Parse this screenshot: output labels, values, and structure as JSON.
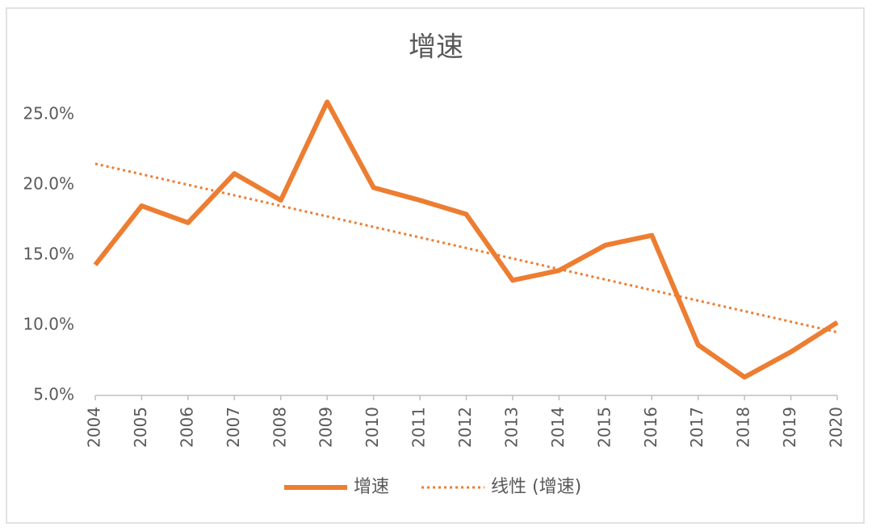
{
  "chart_data": {
    "type": "line",
    "title": "增速",
    "categories": [
      "2004",
      "2005",
      "2006",
      "2007",
      "2008",
      "2009",
      "2010",
      "2011",
      "2012",
      "2013",
      "2014",
      "2015",
      "2016",
      "2017",
      "2018",
      "2019",
      "2020"
    ],
    "series": [
      {
        "name": "增速",
        "color": "#ed7d31",
        "values": [
          14.3,
          18.5,
          17.3,
          20.8,
          18.9,
          25.9,
          19.8,
          18.9,
          17.9,
          13.2,
          13.9,
          15.7,
          16.4,
          8.6,
          6.3,
          8.1,
          10.2
        ]
      }
    ],
    "trendline": {
      "name": "线性 (增速)",
      "color": "#ed7d31",
      "start": 21.5,
      "end": 9.5
    },
    "ylim": [
      5,
      25
    ],
    "yticks": [
      {
        "value": 5,
        "label": "5.0%"
      },
      {
        "value": 10,
        "label": "10.0%"
      },
      {
        "value": 15,
        "label": "15.0%"
      },
      {
        "value": 20,
        "label": "20.0%"
      },
      {
        "value": 25,
        "label": "25.0%"
      }
    ],
    "grid": false,
    "legend": "bottom"
  }
}
